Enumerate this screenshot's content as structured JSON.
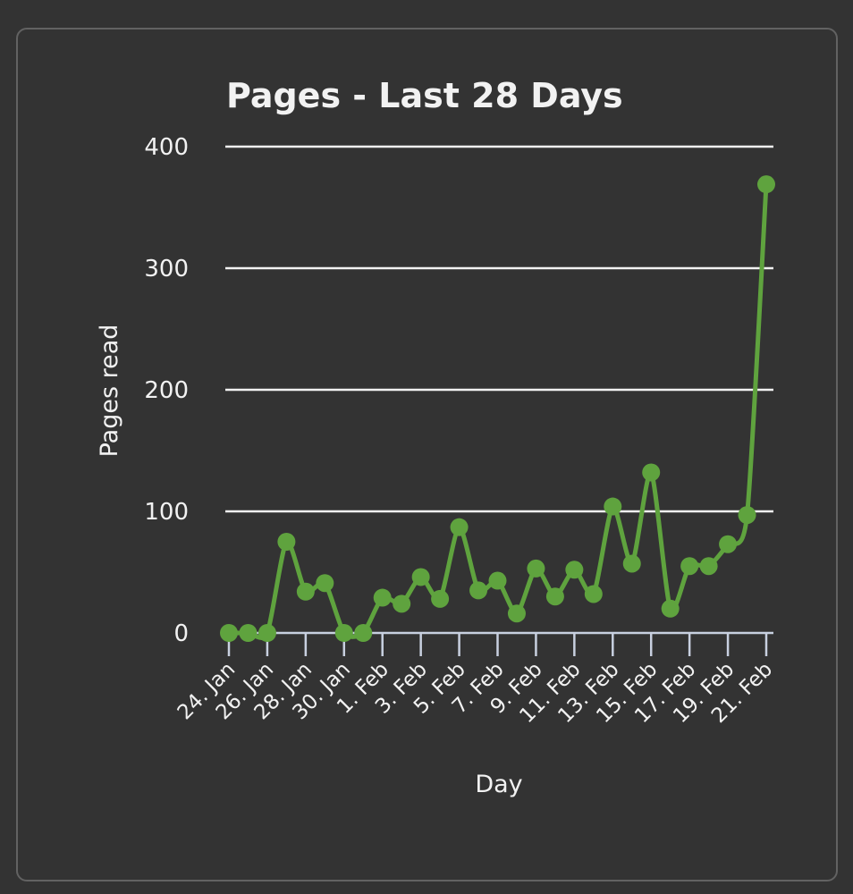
{
  "chart_data": {
    "type": "line",
    "title": "Pages - Last 28 Days",
    "xlabel": "Day",
    "ylabel": "Pages read",
    "ylim": [
      0,
      400
    ],
    "yticks": [
      0,
      100,
      200,
      300,
      400
    ],
    "grid": true,
    "legend": null,
    "x": [
      "24. Jan",
      "25. Jan",
      "26. Jan",
      "27. Jan",
      "28. Jan",
      "29. Jan",
      "30. Jan",
      "31. Jan",
      "1. Feb",
      "2. Feb",
      "3. Feb",
      "4. Feb",
      "5. Feb",
      "6. Feb",
      "7. Feb",
      "8. Feb",
      "9. Feb",
      "10. Feb",
      "11. Feb",
      "12. Feb",
      "13. Feb",
      "14. Feb",
      "15. Feb",
      "16. Feb",
      "17. Feb",
      "18. Feb",
      "19. Feb",
      "20. Feb",
      "21. Feb"
    ],
    "xtick_labels": [
      "24. Jan",
      "26. Jan",
      "28. Jan",
      "30. Jan",
      "1. Feb",
      "3. Feb",
      "5. Feb",
      "7. Feb",
      "9. Feb",
      "11. Feb",
      "13. Feb",
      "15. Feb",
      "17. Feb",
      "19. Feb",
      "21. Feb"
    ],
    "series": [
      {
        "name": "Pages read",
        "color": "#5fa33e",
        "values": [
          0,
          0,
          0,
          75,
          34,
          41,
          0,
          0,
          29,
          24,
          46,
          28,
          87,
          35,
          43,
          16,
          53,
          30,
          52,
          32,
          104,
          57,
          132,
          20,
          55,
          55,
          73,
          97,
          369
        ]
      }
    ]
  },
  "colors": {
    "background": "#333333",
    "card_border": "#626262",
    "grid": "#f2f2f2",
    "axis": "#c8d0e0",
    "text": "#f2f2f2",
    "series": "#5fa33e"
  }
}
